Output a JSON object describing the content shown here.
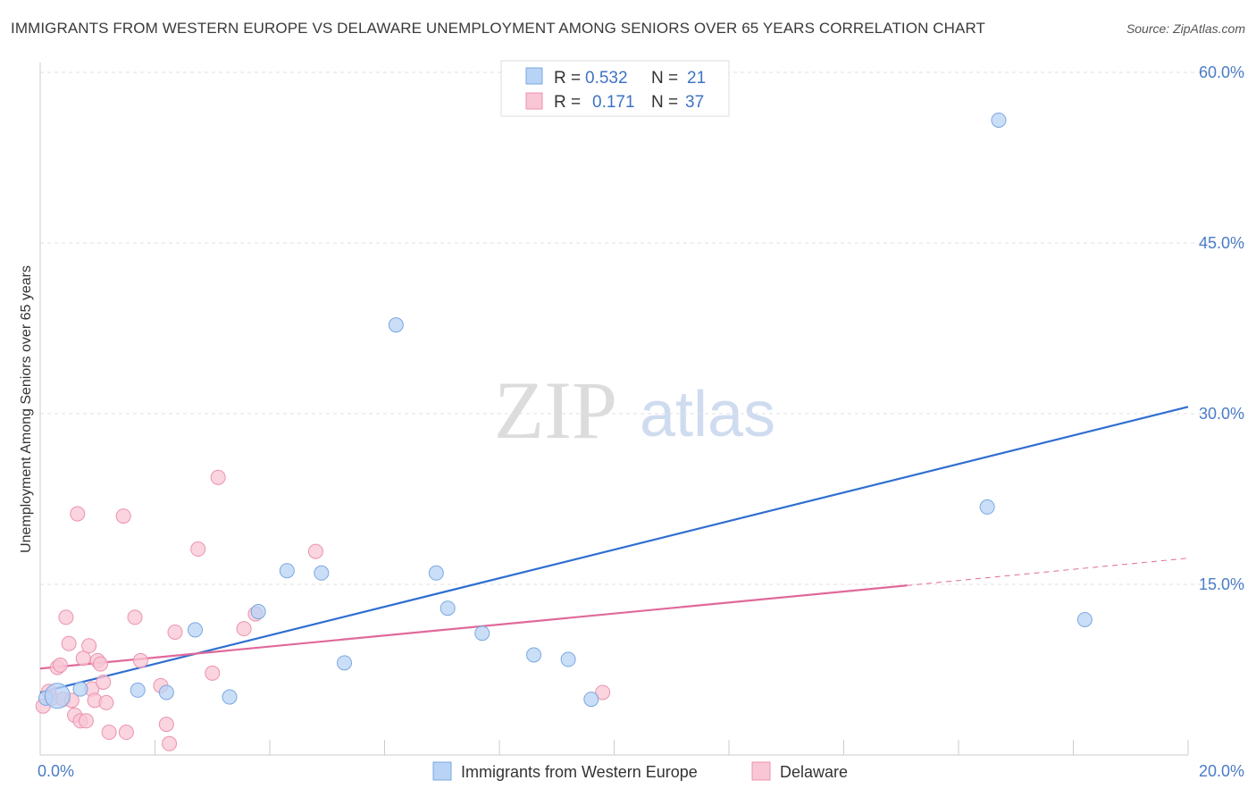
{
  "header": {
    "title": "IMMIGRANTS FROM WESTERN EUROPE VS DELAWARE UNEMPLOYMENT AMONG SENIORS OVER 65 YEARS CORRELATION CHART",
    "source": "Source: ZipAtlas.com"
  },
  "watermark": {
    "zip": "ZIP",
    "atlas": "atlas"
  },
  "legend": {
    "series1": {
      "r_label": "R = ",
      "r_value": "0.532",
      "n_label": "N = ",
      "n_value": "21"
    },
    "series2": {
      "r_label": "R = ",
      "r_value": "0.171",
      "n_label": "N = ",
      "n_value": "37"
    }
  },
  "bottom_legend": {
    "series1": "Immigrants from Western Europe",
    "series2": "Delaware"
  },
  "chart_data": {
    "type": "scatter",
    "title": "IMMIGRANTS FROM WESTERN EUROPE VS DELAWARE UNEMPLOYMENT AMONG SENIORS OVER 65 YEARS CORRELATION CHART",
    "xlabel": "",
    "ylabel": "Unemployment Among Seniors over 65 years",
    "xlim": [
      0,
      20
    ],
    "ylim": [
      0,
      62
    ],
    "x_tick_labels": [
      "0.0%",
      "20.0%"
    ],
    "y_ticks": [
      15,
      30,
      45,
      60
    ],
    "y_tick_labels": [
      "15.0%",
      "30.0%",
      "45.0%",
      "60.0%"
    ],
    "colors": {
      "series1_fill": "#b8d3f5",
      "series1_stroke": "#7aa8e0",
      "series1_line": "#2f6fd0",
      "series2_fill": "#f8c6d4",
      "series2_stroke": "#eb93ae",
      "series2_line": "#e0699a"
    },
    "series": [
      {
        "name": "Immigrants from Western Europe",
        "points": [
          [
            0.1,
            5.0
          ],
          [
            0.7,
            5.8
          ],
          [
            1.7,
            5.7
          ],
          [
            2.2,
            5.5
          ],
          [
            2.7,
            11.0
          ],
          [
            3.3,
            5.1
          ],
          [
            3.8,
            12.6
          ],
          [
            4.3,
            16.2
          ],
          [
            4.9,
            16.0
          ],
          [
            5.3,
            8.1
          ],
          [
            6.2,
            37.8
          ],
          [
            6.9,
            16.0
          ],
          [
            7.1,
            12.9
          ],
          [
            7.7,
            10.7
          ],
          [
            8.6,
            8.8
          ],
          [
            9.2,
            8.4
          ],
          [
            9.6,
            4.9
          ],
          [
            16.7,
            55.8
          ],
          [
            16.5,
            21.8
          ],
          [
            18.2,
            11.9
          ],
          [
            0.3,
            5.2
          ]
        ],
        "trend": {
          "x0": 0,
          "y0": 5.5,
          "x1": 20,
          "y1": 30.6
        }
      },
      {
        "name": "Delaware",
        "points": [
          [
            0.05,
            4.3
          ],
          [
            0.2,
            5.0
          ],
          [
            0.3,
            7.7
          ],
          [
            0.35,
            7.9
          ],
          [
            0.4,
            4.9
          ],
          [
            0.45,
            12.1
          ],
          [
            0.5,
            9.8
          ],
          [
            0.6,
            3.5
          ],
          [
            0.65,
            21.2
          ],
          [
            0.7,
            3.0
          ],
          [
            0.75,
            8.5
          ],
          [
            0.8,
            3.0
          ],
          [
            0.85,
            9.6
          ],
          [
            0.9,
            5.8
          ],
          [
            0.95,
            4.8
          ],
          [
            1.0,
            8.3
          ],
          [
            1.05,
            8.0
          ],
          [
            1.1,
            6.4
          ],
          [
            1.15,
            4.6
          ],
          [
            1.2,
            2.0
          ],
          [
            1.45,
            21.0
          ],
          [
            1.5,
            2.0
          ],
          [
            1.65,
            12.1
          ],
          [
            1.75,
            8.3
          ],
          [
            2.1,
            6.1
          ],
          [
            2.2,
            2.7
          ],
          [
            2.25,
            1.0
          ],
          [
            2.35,
            10.8
          ],
          [
            2.75,
            18.1
          ],
          [
            3.0,
            7.2
          ],
          [
            3.1,
            24.4
          ],
          [
            3.55,
            11.1
          ],
          [
            3.75,
            12.4
          ],
          [
            4.8,
            17.9
          ],
          [
            9.8,
            5.5
          ],
          [
            0.15,
            5.6
          ],
          [
            0.55,
            4.8
          ]
        ],
        "trend": {
          "x0": 0,
          "y0": 7.6,
          "x1": 15.1,
          "y1": 14.9
        },
        "trend_dashed": {
          "x0": 15.1,
          "y0": 14.9,
          "x1": 20,
          "y1": 17.3
        }
      }
    ]
  }
}
